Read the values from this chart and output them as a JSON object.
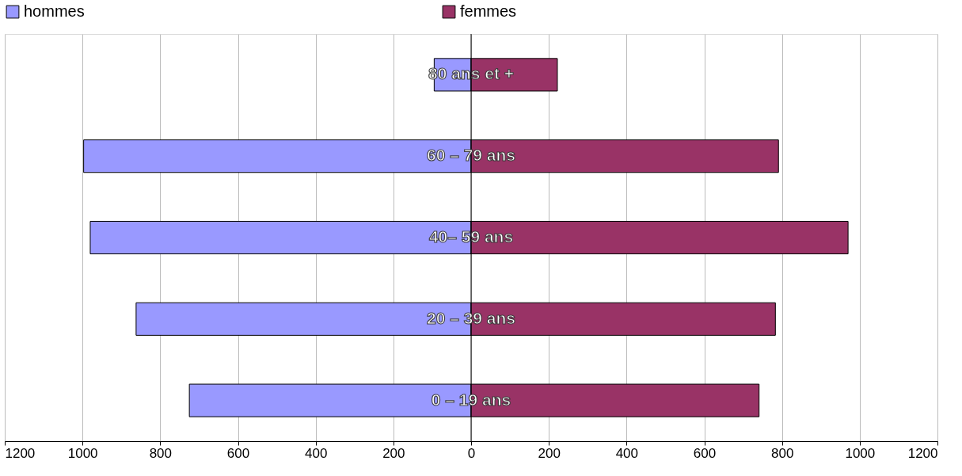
{
  "chart_data": {
    "type": "bar",
    "orientation": "horizontal",
    "categories": [
      "80 ans et +",
      "60 – 79 ans",
      "40– 59 ans",
      "20 – 39 ans",
      "0 – 19 ans"
    ],
    "series": [
      {
        "name": "hommes",
        "color": "#9999ff",
        "values": [
          -95,
          -997,
          -980,
          -862,
          -725
        ]
      },
      {
        "name": "femmes",
        "color": "#993366",
        "values": [
          222,
          791,
          970,
          783,
          741
        ]
      }
    ],
    "xlim": [
      -1200,
      1200
    ],
    "xticks": [
      {
        "value": -1200,
        "label": "1200"
      },
      {
        "value": -1000,
        "label": "1000"
      },
      {
        "value": -800,
        "label": "800"
      },
      {
        "value": -600,
        "label": "600"
      },
      {
        "value": -400,
        "label": "400"
      },
      {
        "value": -200,
        "label": "200"
      },
      0,
      200,
      400,
      600,
      800,
      1000,
      1200
    ],
    "grid": "x",
    "stacked": true,
    "legend": "top",
    "tick_labels": "x"
  }
}
